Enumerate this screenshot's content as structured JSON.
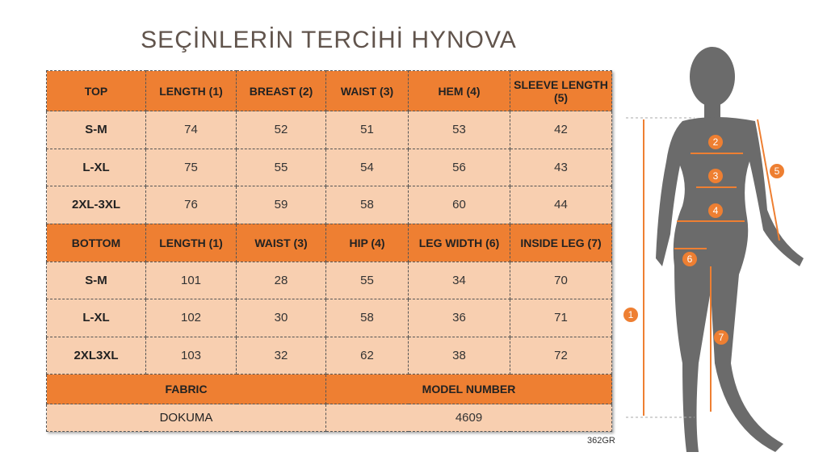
{
  "top": {
    "headers": [
      "TOP",
      "LENGTH (1)",
      "BREAST (2)",
      "WAIST (3)",
      "HEM (4)",
      "SLEEVE LENGTH (5)"
    ],
    "rows": [
      [
        "S-M",
        "74",
        "52",
        "51",
        "53",
        "42"
      ],
      [
        "L-XL",
        "75",
        "55",
        "54",
        "56",
        "43"
      ],
      [
        "2XL-3XL",
        "76",
        "59",
        "58",
        "60",
        "44"
      ]
    ]
  },
  "bottom": {
    "headers": [
      "BOTTOM",
      "LENGTH (1)",
      "WAIST (3)",
      "HIP (4)",
      "LEG WIDTH (6)",
      "INSIDE LEG (7)"
    ],
    "rows": [
      [
        "S-M",
        "101",
        "28",
        "55",
        "34",
        "70"
      ],
      [
        "L-XL",
        "102",
        "30",
        "58",
        "36",
        "71"
      ],
      [
        "2XL3XL",
        "103",
        "32",
        "62",
        "38",
        "72"
      ]
    ]
  },
  "info": {
    "fabric_label": "FABRIC",
    "model_label": "MODEL NUMBER",
    "fabric": "DOKUMA",
    "model": "4609"
  },
  "watermark": "SEÇİNLERİN TERCİHİ HYNOVA",
  "code": "362GR",
  "markers": [
    "1",
    "2",
    "3",
    "4",
    "5",
    "6",
    "7"
  ],
  "colors": {
    "header": "#ee7f32",
    "row": "#f8cfb0",
    "marker": "#ee7f32"
  }
}
